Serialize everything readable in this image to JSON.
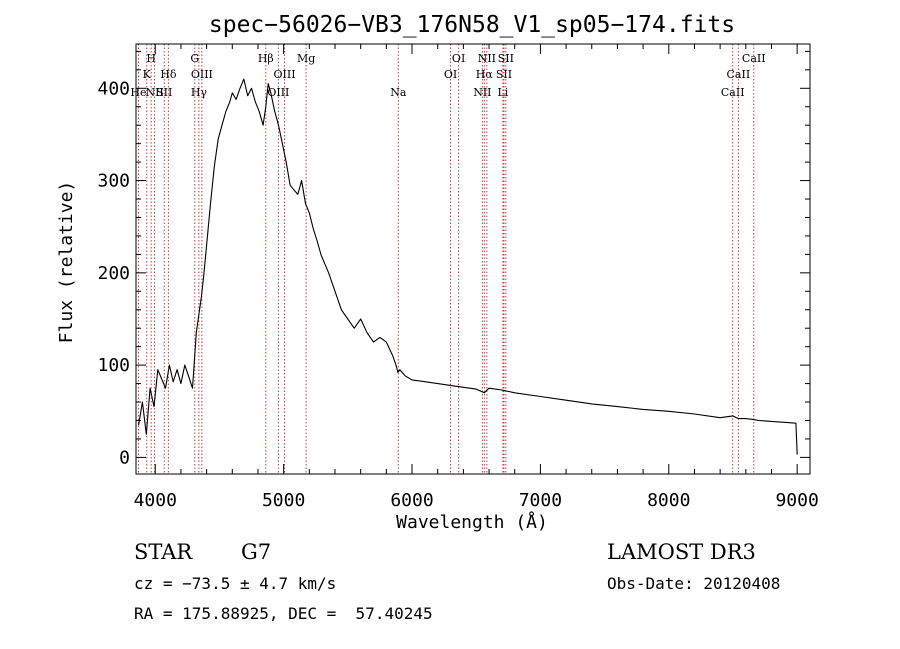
{
  "chart_data": {
    "type": "line",
    "title": "spec−56026−VB3_176N58_V1_sp05−174.fits",
    "xlabel": "Wavelength (Å)",
    "ylabel": "Flux (relative)",
    "xlim": [
      3850,
      9100
    ],
    "ylim": [
      -18,
      448
    ],
    "x_ticks": [
      4000,
      5000,
      6000,
      7000,
      8000,
      9000
    ],
    "y_ticks": [
      0,
      100,
      200,
      300,
      400
    ],
    "grid": false,
    "series": [
      {
        "name": "spectrum",
        "x": [
          3870,
          3900,
          3930,
          3960,
          3990,
          4020,
          4050,
          4080,
          4110,
          4140,
          4170,
          4200,
          4230,
          4260,
          4290,
          4320,
          4340,
          4360,
          4380,
          4400,
          4430,
          4460,
          4490,
          4520,
          4550,
          4580,
          4600,
          4630,
          4660,
          4690,
          4720,
          4750,
          4780,
          4810,
          4840,
          4861,
          4880,
          4900,
          4930,
          4960,
          4990,
          5020,
          5050,
          5080,
          5110,
          5140,
          5170,
          5200,
          5230,
          5260,
          5290,
          5320,
          5350,
          5400,
          5450,
          5500,
          5550,
          5600,
          5650,
          5700,
          5750,
          5800,
          5850,
          5875,
          5890,
          5905,
          5950,
          6000,
          6100,
          6200,
          6300,
          6400,
          6500,
          6563,
          6600,
          6700,
          6800,
          7000,
          7200,
          7400,
          7600,
          7800,
          8000,
          8200,
          8400,
          8498,
          8542,
          8600,
          8662,
          8700,
          8800,
          8900,
          8990,
          9000
        ],
        "y": [
          35,
          60,
          25,
          75,
          55,
          95,
          85,
          75,
          100,
          82,
          95,
          80,
          100,
          88,
          75,
          135,
          155,
          175,
          200,
          230,
          275,
          315,
          345,
          360,
          375,
          385,
          395,
          388,
          400,
          410,
          392,
          400,
          385,
          375,
          360,
          380,
          405,
          395,
          375,
          360,
          340,
          320,
          295,
          290,
          285,
          300,
          275,
          265,
          248,
          235,
          220,
          210,
          200,
          180,
          160,
          150,
          140,
          150,
          135,
          125,
          130,
          125,
          110,
          100,
          92,
          95,
          88,
          84,
          82,
          80,
          78,
          76,
          74,
          70,
          75,
          73,
          70,
          66,
          62,
          58,
          55,
          52,
          50,
          47,
          43,
          45,
          42,
          42,
          41,
          40,
          39,
          38,
          37,
          3
        ]
      }
    ],
    "line_markers": [
      {
        "wavelength": 3869,
        "row": 3,
        "label": "He"
      },
      {
        "wavelength": 3934,
        "row": 2,
        "label": "K"
      },
      {
        "wavelength": 3968,
        "row": 1,
        "label": "H"
      },
      {
        "wavelength": 3995,
        "row": 3,
        "label": "NII"
      },
      {
        "wavelength": 4070,
        "row": 3,
        "label": "SII"
      },
      {
        "wavelength": 4102,
        "row": 2,
        "label": "Hδ"
      },
      {
        "wavelength": 4308,
        "row": 1,
        "label": "G"
      },
      {
        "wavelength": 4340,
        "row": 3,
        "label": "Hγ"
      },
      {
        "wavelength": 4363,
        "row": 2,
        "label": "OIII"
      },
      {
        "wavelength": 4861,
        "row": 1,
        "label": "Hβ"
      },
      {
        "wavelength": 4959,
        "row": 3,
        "label": "OIII"
      },
      {
        "wavelength": 5007,
        "row": 2,
        "label": "OIII"
      },
      {
        "wavelength": 5175,
        "row": 1,
        "label": "Mg"
      },
      {
        "wavelength": 5893,
        "row": 3,
        "label": "Na"
      },
      {
        "wavelength": 6300,
        "row": 2,
        "label": "OI"
      },
      {
        "wavelength": 6363,
        "row": 1,
        "label": "OI"
      },
      {
        "wavelength": 6548,
        "row": 3,
        "label": "NII"
      },
      {
        "wavelength": 6563,
        "row": 2,
        "label": "Hα"
      },
      {
        "wavelength": 6583,
        "row": 1,
        "label": "NII"
      },
      {
        "wavelength": 6708,
        "row": 3,
        "label": "Li"
      },
      {
        "wavelength": 6716,
        "row": 2,
        "label": "SII"
      },
      {
        "wavelength": 6731,
        "row": 1,
        "label": "SII"
      },
      {
        "wavelength": 8498,
        "row": 3,
        "label": "CaII"
      },
      {
        "wavelength": 8542,
        "row": 2,
        "label": "CaII"
      },
      {
        "wavelength": 8662,
        "row": 1,
        "label": "CaII"
      }
    ]
  },
  "info": {
    "object_class": "STAR",
    "subclass": "G7",
    "cz": "cz = −73.5 ± 4.7 km/s",
    "coords": "RA = 175.88925, DEC =  57.40245",
    "survey": "LAMOST DR3",
    "obs_date": "Obs-Date: 20120408"
  }
}
